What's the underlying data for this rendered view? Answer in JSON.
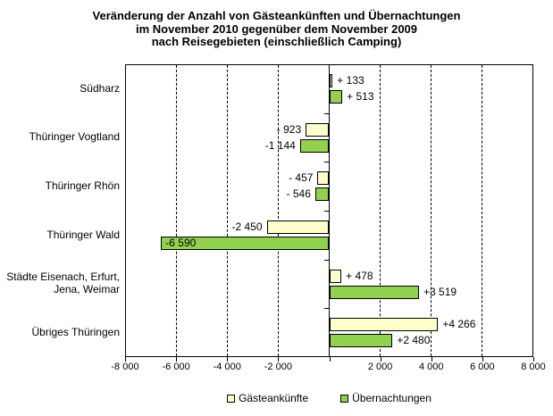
{
  "title_lines": [
    "Veränderung der Anzahl von Gästeankünften und Übernachtungen",
    "im November 2010 gegenüber dem November 2009",
    "nach Reisegebieten (einschließlich Camping)"
  ],
  "chart_data": {
    "type": "bar",
    "orientation": "horizontal",
    "title": "Veränderung der Anzahl von Gästeankünften und Übernachtungen im November 2010 gegenüber dem November 2009 nach Reisegebieten (einschließlich Camping)",
    "categories": [
      "Südharz",
      "Thüringer Vogtland",
      "Thüringer Rhön",
      "Thüringer Wald",
      "Städte Eisenach, Erfurt,\nJena, Weimar",
      "Übriges Thüringen"
    ],
    "series": [
      {
        "name": "Gästeankünfte",
        "color": "#FFFFCC",
        "values": [
          133,
          -923,
          -457,
          -2450,
          478,
          4266
        ],
        "labels": [
          "+ 133",
          "- 923",
          "- 457",
          "-2 450",
          "+ 478",
          "+4 266"
        ],
        "label_inside_indexes": []
      },
      {
        "name": "Übernachtungen",
        "color": "#92D050",
        "values": [
          513,
          -1144,
          -546,
          -6590,
          3519,
          2480
        ],
        "labels": [
          "+ 513",
          "-1 144",
          "- 546",
          "-6 590",
          "+3 519",
          "+2 480"
        ],
        "label_inside_indexes": [
          3
        ]
      }
    ],
    "xlim": [
      -8000,
      8000
    ],
    "xticks": [
      {
        "value": -8000,
        "label": "-8 000"
      },
      {
        "value": -6000,
        "label": "-6 000"
      },
      {
        "value": -4000,
        "label": "-4 000"
      },
      {
        "value": -2000,
        "label": "-2 000"
      },
      {
        "value": 0,
        "label": ""
      },
      {
        "value": 2000,
        "label": "2 000"
      },
      {
        "value": 4000,
        "label": "4 000"
      },
      {
        "value": 6000,
        "label": "6 000"
      },
      {
        "value": 8000,
        "label": "8 000"
      }
    ],
    "grid": "vertical-dashed",
    "legend_position": "bottom"
  }
}
